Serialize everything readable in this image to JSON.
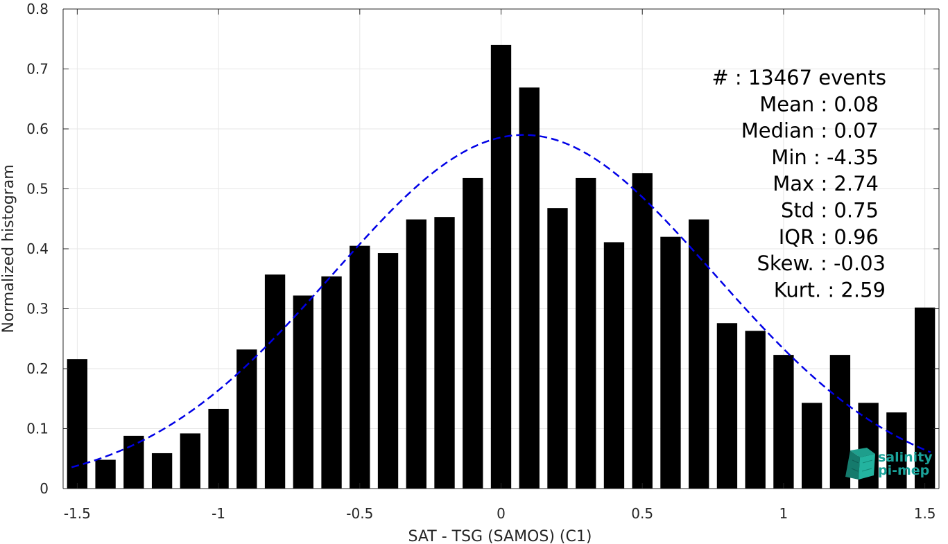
{
  "chart_data": {
    "type": "bar",
    "xlabel": "SAT - TSG (SAMOS) (C1)",
    "ylabel": "Normalized histogram",
    "xlim": [
      -1.55,
      1.55
    ],
    "ylim": [
      0,
      0.8
    ],
    "x_ticks": [
      -1.5,
      -1,
      -0.5,
      0,
      0.5,
      1,
      1.5
    ],
    "x_tick_labels": [
      "-1.5",
      "-1",
      "-0.5",
      "0",
      "0.5",
      "1",
      "1.5"
    ],
    "y_ticks": [
      0,
      0.1,
      0.2,
      0.3,
      0.4,
      0.5,
      0.6,
      0.7,
      0.8
    ],
    "y_tick_labels": [
      "0",
      "0.1",
      "0.2",
      "0.3",
      "0.4",
      "0.5",
      "0.6",
      "0.7",
      "0.8"
    ],
    "grid": true,
    "bin_width": 0.1,
    "x": [
      -1.5,
      -1.4,
      -1.3,
      -1.2,
      -1.1,
      -1.0,
      -0.9,
      -0.8,
      -0.7,
      -0.6,
      -0.5,
      -0.4,
      -0.3,
      -0.2,
      -0.1,
      0.0,
      0.1,
      0.2,
      0.3,
      0.4,
      0.5,
      0.6,
      0.7,
      0.8,
      0.9,
      1.0,
      1.1,
      1.2,
      1.3,
      1.4,
      1.5
    ],
    "values": [
      0.216,
      0.048,
      0.088,
      0.059,
      0.092,
      0.133,
      0.232,
      0.357,
      0.322,
      0.354,
      0.405,
      0.393,
      0.449,
      0.453,
      0.518,
      0.74,
      0.669,
      0.468,
      0.518,
      0.411,
      0.526,
      0.42,
      0.449,
      0.276,
      0.263,
      0.223,
      0.143,
      0.223,
      0.143,
      0.127,
      0.302
    ],
    "bar_color": "#000000",
    "fit_curve": {
      "style": "dashed",
      "color": "#0000e6",
      "mean": 0.08,
      "std": 0.675,
      "peak": 0.59,
      "x_range": [
        -1.52,
        1.52
      ]
    },
    "stats_box": {
      "lines": [
        "#  : 13467 events",
        "Mean : 0.08",
        "Median : 0.07",
        "Min : -4.35",
        "Max : 2.74",
        "Std : 0.75",
        "IQR : 0.96",
        "Skew. : -0.03",
        "Kurt. : 2.59"
      ]
    }
  },
  "logo": {
    "line1": "salinity",
    "line2": "pi-mep",
    "color": "#1aa39a"
  }
}
